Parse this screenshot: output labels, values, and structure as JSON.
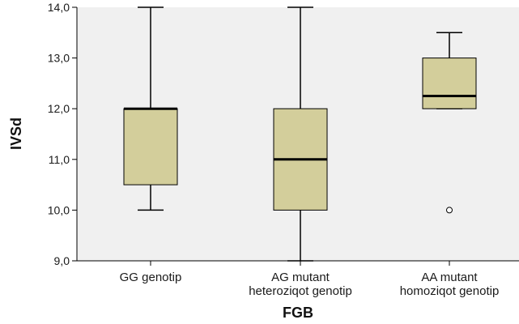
{
  "chart_data": {
    "type": "boxplot",
    "xlabel": "FGB",
    "ylabel": "IVSd",
    "ylim": [
      9.0,
      14.0
    ],
    "yticks": [
      "9,0",
      "10,0",
      "11,0",
      "12,0",
      "13,0",
      "14,0"
    ],
    "ytick_values": [
      9,
      10,
      11,
      12,
      13,
      14
    ],
    "categories": [
      {
        "line1": "GG genotip",
        "line2": ""
      },
      {
        "line1": "AG mutant",
        "line2": "heteroziqot genotip"
      },
      {
        "line1": "AA mutant",
        "line2": "homoziqot genotip"
      }
    ],
    "boxes": [
      {
        "whisker_low": 10.0,
        "q1": 10.5,
        "median": 12.0,
        "q3": 12.0,
        "whisker_high": 14.0,
        "outliers": []
      },
      {
        "whisker_low": 9.0,
        "q1": 10.0,
        "median": 11.0,
        "q3": 12.0,
        "whisker_high": 14.0,
        "outliers": []
      },
      {
        "whisker_low": 12.0,
        "q1": 12.0,
        "median": 12.25,
        "q3": 13.0,
        "whisker_high": 13.5,
        "outliers": [
          10.0
        ]
      }
    ],
    "grid": false,
    "colors": {
      "plot_bg": "#f0f0f0",
      "box_fill": "#d3ce9b",
      "line": "#000000"
    }
  }
}
